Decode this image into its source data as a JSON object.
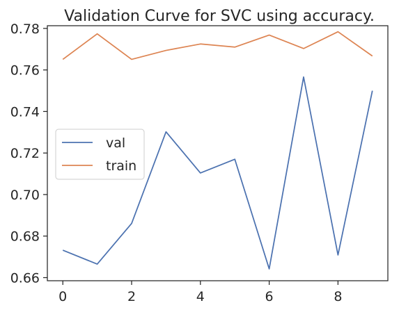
{
  "chart_data": {
    "type": "line",
    "title": "Validation Curve for SVC using accuracy.",
    "xlabel": "",
    "ylabel": "",
    "x": [
      0,
      1,
      2,
      3,
      4,
      5,
      6,
      7,
      8,
      9
    ],
    "series": [
      {
        "name": "val",
        "color": "#4c72b0",
        "values": [
          0.6732,
          0.6665,
          0.6861,
          0.7302,
          0.7104,
          0.717,
          0.6642,
          0.7566,
          0.6709,
          0.75
        ]
      },
      {
        "name": "train",
        "color": "#dd8452",
        "values": [
          0.7651,
          0.7774,
          0.7651,
          0.7694,
          0.7725,
          0.771,
          0.7768,
          0.7703,
          0.7784,
          0.7667
        ]
      }
    ],
    "xlim": [
      -0.45,
      9.45
    ],
    "ylim": [
      0.6585,
      0.7813
    ],
    "x_ticks": [
      0,
      2,
      4,
      6,
      8
    ],
    "x_tick_labels": [
      "0",
      "2",
      "4",
      "6",
      "8"
    ],
    "y_ticks": [
      0.66,
      0.68,
      0.7,
      0.72,
      0.74,
      0.76,
      0.78
    ],
    "y_tick_labels": [
      "0.66",
      "0.68",
      "0.70",
      "0.72",
      "0.74",
      "0.76",
      "0.78"
    ],
    "grid": false,
    "legend_position": "center-left"
  }
}
